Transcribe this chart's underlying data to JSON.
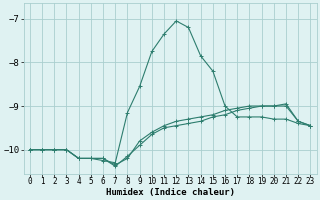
{
  "xlabel": "Humidex (Indice chaleur)",
  "ylabel": "",
  "background_color": "#dff2f2",
  "grid_color": "#aacfcf",
  "line_color": "#2d7d6e",
  "xlim": [
    -0.5,
    23.5
  ],
  "ylim": [
    -10.55,
    -6.65
  ],
  "yticks": [
    -10,
    -9,
    -8,
    -7
  ],
  "xticks": [
    0,
    1,
    2,
    3,
    4,
    5,
    6,
    7,
    8,
    9,
    10,
    11,
    12,
    13,
    14,
    15,
    16,
    17,
    18,
    19,
    20,
    21,
    22,
    23
  ],
  "series1_x": [
    0,
    1,
    2,
    3,
    4,
    5,
    6,
    7,
    8,
    9,
    10,
    11,
    12,
    13,
    14,
    15,
    16,
    17,
    18,
    19,
    20,
    21,
    22,
    23
  ],
  "series1_y": [
    -10.0,
    -10.0,
    -10.0,
    -10.0,
    -10.2,
    -10.2,
    -10.25,
    -10.3,
    -9.15,
    -8.55,
    -7.75,
    -7.35,
    -7.05,
    -7.2,
    -7.85,
    -8.2,
    -9.0,
    -9.25,
    -9.25,
    -9.25,
    -9.3,
    -9.3,
    -9.4,
    -9.45
  ],
  "series2_x": [
    0,
    1,
    2,
    3,
    4,
    5,
    6,
    7,
    8,
    9,
    10,
    11,
    12,
    13,
    14,
    15,
    16,
    17,
    18,
    19,
    20,
    21,
    22,
    23
  ],
  "series2_y": [
    -10.0,
    -10.0,
    -10.0,
    -10.0,
    -10.2,
    -10.2,
    -10.2,
    -10.35,
    -10.2,
    -9.8,
    -9.6,
    -9.45,
    -9.35,
    -9.3,
    -9.25,
    -9.2,
    -9.1,
    -9.05,
    -9.0,
    -9.0,
    -9.0,
    -9.0,
    -9.35,
    -9.45
  ],
  "series3_x": [
    0,
    1,
    2,
    3,
    4,
    5,
    6,
    7,
    8,
    9,
    10,
    11,
    12,
    13,
    14,
    15,
    16,
    17,
    18,
    19,
    20,
    21,
    22,
    23
  ],
  "series3_y": [
    -10.0,
    -10.0,
    -10.0,
    -10.0,
    -10.2,
    -10.2,
    -10.2,
    -10.38,
    -10.15,
    -9.9,
    -9.65,
    -9.5,
    -9.45,
    -9.4,
    -9.35,
    -9.25,
    -9.2,
    -9.1,
    -9.05,
    -9.0,
    -9.0,
    -8.95,
    -9.35,
    -9.45
  ],
  "xlabel_fontsize": 6.5,
  "tick_fontsize": 5.5,
  "ytick_fontsize": 6.5
}
